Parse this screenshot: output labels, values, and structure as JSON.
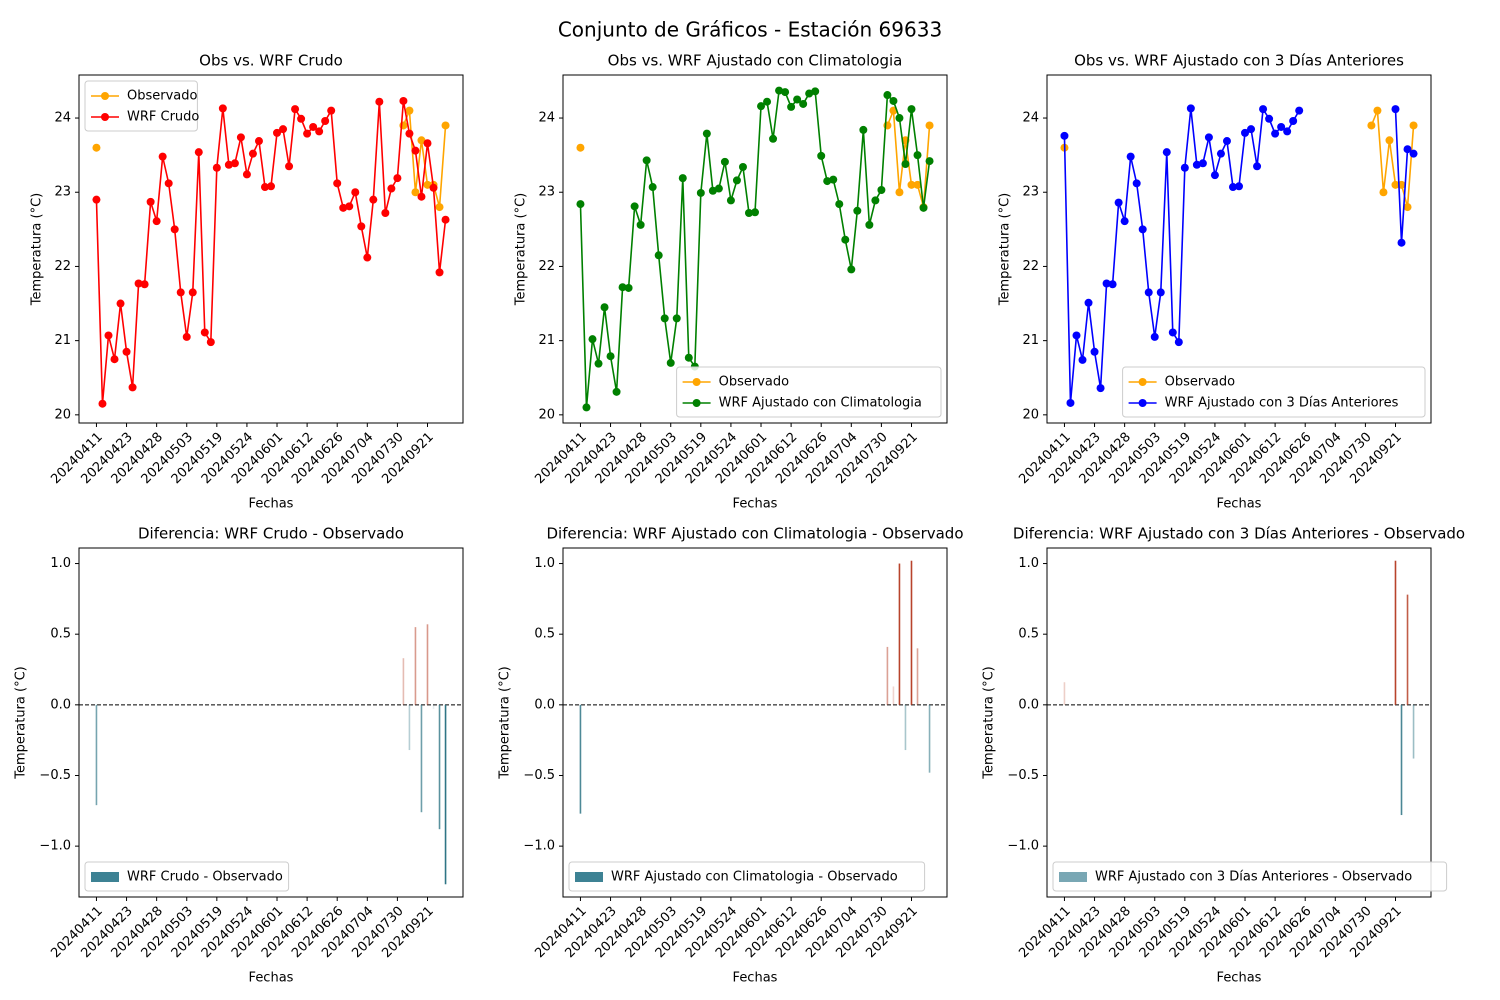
{
  "title": "Conjunto de Gráficos - Estación 69633",
  "chart_data": [
    {
      "type": "line",
      "title": "Obs vs. WRF Crudo",
      "xlabel": "Fechas",
      "ylabel": "Temperatura (°C)",
      "categories": [
        "20240411",
        null,
        null,
        null,
        null,
        "20240423",
        null,
        null,
        null,
        null,
        "20240428",
        null,
        null,
        null,
        null,
        "20240503",
        null,
        null,
        null,
        null,
        "20240519",
        null,
        null,
        null,
        null,
        "20240524",
        null,
        null,
        null,
        null,
        "20240601",
        null,
        null,
        null,
        null,
        "20240612",
        null,
        null,
        null,
        null,
        "20240626",
        null,
        null,
        null,
        null,
        "20240704",
        null,
        null,
        null,
        null,
        "20240730",
        null,
        null,
        null,
        null,
        "20240921",
        null,
        null,
        null
      ],
      "series": [
        {
          "name": "Observado",
          "color": "orange",
          "values": [
            23.6,
            null,
            null,
            null,
            null,
            null,
            null,
            null,
            null,
            null,
            null,
            null,
            null,
            null,
            null,
            null,
            null,
            null,
            null,
            null,
            null,
            null,
            null,
            null,
            null,
            null,
            null,
            null,
            null,
            null,
            null,
            null,
            null,
            null,
            null,
            null,
            null,
            null,
            null,
            null,
            null,
            null,
            null,
            null,
            null,
            null,
            null,
            null,
            null,
            null,
            null,
            23.9,
            24.1,
            23.0,
            23.7,
            23.1,
            23.1,
            22.8,
            23.9
          ]
        },
        {
          "name": "WRF Crudo",
          "color": "red",
          "values": [
            22.9,
            20.15,
            21.07,
            20.75,
            21.5,
            20.85,
            20.37,
            21.77,
            21.76,
            22.87,
            22.61,
            23.48,
            23.12,
            22.5,
            21.65,
            21.05,
            21.65,
            23.54,
            21.11,
            20.98,
            23.33,
            24.13,
            23.37,
            23.39,
            23.74,
            23.24,
            23.52,
            23.69,
            23.07,
            23.08,
            23.8,
            23.85,
            23.35,
            24.12,
            23.99,
            23.79,
            23.88,
            23.82,
            23.96,
            24.1,
            23.12,
            22.79,
            22.81,
            23.0,
            22.54,
            22.12,
            22.9,
            24.22,
            22.72,
            23.05,
            23.19,
            24.23,
            23.79,
            23.56,
            22.94,
            23.66,
            23.06,
            21.92,
            22.63
          ]
        }
      ],
      "ylim": [
        19.89,
        24.58
      ],
      "yticks": [
        20,
        21,
        22,
        23,
        24
      ],
      "legend": "upper left"
    },
    {
      "type": "line",
      "title": "Obs vs. WRF Ajustado con Climatologia",
      "xlabel": "Fechas",
      "ylabel": "Temperatura (°C)",
      "categories": [
        "20240411",
        null,
        null,
        null,
        null,
        "20240423",
        null,
        null,
        null,
        null,
        "20240428",
        null,
        null,
        null,
        null,
        "20240503",
        null,
        null,
        null,
        null,
        "20240519",
        null,
        null,
        null,
        null,
        "20240524",
        null,
        null,
        null,
        null,
        "20240601",
        null,
        null,
        null,
        null,
        "20240612",
        null,
        null,
        null,
        null,
        "20240626",
        null,
        null,
        null,
        null,
        "20240704",
        null,
        null,
        null,
        null,
        "20240730",
        null,
        null,
        null,
        null,
        "20240921",
        null,
        null,
        null
      ],
      "series": [
        {
          "name": "Observado",
          "color": "orange",
          "values": [
            23.6,
            null,
            null,
            null,
            null,
            null,
            null,
            null,
            null,
            null,
            null,
            null,
            null,
            null,
            null,
            null,
            null,
            null,
            null,
            null,
            null,
            null,
            null,
            null,
            null,
            null,
            null,
            null,
            null,
            null,
            null,
            null,
            null,
            null,
            null,
            null,
            null,
            null,
            null,
            null,
            null,
            null,
            null,
            null,
            null,
            null,
            null,
            null,
            null,
            null,
            null,
            23.9,
            24.1,
            23.0,
            23.7,
            23.1,
            23.1,
            22.8,
            23.9
          ]
        },
        {
          "name": "WRF Ajustado con Climatologia",
          "color": "green",
          "values": [
            22.84,
            20.1,
            21.02,
            20.69,
            21.45,
            20.79,
            20.31,
            21.72,
            21.71,
            22.81,
            22.56,
            23.43,
            23.07,
            22.15,
            21.3,
            20.7,
            21.3,
            23.19,
            20.77,
            20.65,
            22.99,
            23.79,
            23.02,
            23.05,
            23.41,
            22.89,
            23.16,
            23.34,
            22.72,
            22.73,
            24.16,
            24.22,
            23.72,
            24.37,
            24.35,
            24.15,
            24.25,
            24.19,
            24.33,
            24.36,
            23.49,
            23.15,
            23.17,
            22.84,
            22.36,
            21.96,
            22.75,
            23.84,
            22.56,
            22.89,
            23.03,
            24.31,
            24.23,
            24.0,
            23.38,
            24.12,
            23.5,
            22.79,
            23.42
          ]
        }
      ],
      "ylim": [
        19.89,
        24.58
      ],
      "yticks": [
        20,
        21,
        22,
        23,
        24
      ],
      "legend": "lower right"
    },
    {
      "type": "line",
      "title": "Obs vs. WRF Ajustado con 3 Días Anteriores",
      "xlabel": "Fechas",
      "ylabel": "Temperatura (°C)",
      "categories": [
        "20240411",
        null,
        null,
        null,
        null,
        "20240423",
        null,
        null,
        null,
        null,
        "20240428",
        null,
        null,
        null,
        null,
        "20240503",
        null,
        null,
        null,
        null,
        "20240519",
        null,
        null,
        null,
        null,
        "20240524",
        null,
        null,
        null,
        null,
        "20240601",
        null,
        null,
        null,
        null,
        "20240612",
        null,
        null,
        null,
        null,
        "20240626",
        null,
        null,
        null,
        null,
        "20240704",
        null,
        null,
        null,
        null,
        "20240730",
        null,
        null,
        null,
        null,
        "20240921",
        null,
        null,
        null
      ],
      "series": [
        {
          "name": "Observado",
          "color": "orange",
          "values": [
            23.6,
            null,
            null,
            null,
            null,
            null,
            null,
            null,
            null,
            null,
            null,
            null,
            null,
            null,
            null,
            null,
            null,
            null,
            null,
            null,
            null,
            null,
            null,
            null,
            null,
            null,
            null,
            null,
            null,
            null,
            null,
            null,
            null,
            null,
            null,
            null,
            null,
            null,
            null,
            null,
            null,
            null,
            null,
            null,
            null,
            null,
            null,
            null,
            null,
            null,
            null,
            23.9,
            24.1,
            23.0,
            23.7,
            23.1,
            23.1,
            22.8,
            23.9
          ]
        },
        {
          "name": "WRF Ajustado con 3 Días Anteriores",
          "color": "blue",
          "values": [
            23.76,
            20.16,
            21.07,
            20.74,
            21.51,
            20.85,
            20.36,
            21.77,
            21.76,
            22.86,
            22.61,
            23.48,
            23.12,
            22.5,
            21.65,
            21.05,
            21.65,
            23.54,
            21.11,
            20.98,
            23.33,
            24.13,
            23.37,
            23.39,
            23.74,
            23.23,
            23.52,
            23.69,
            23.07,
            23.08,
            23.8,
            23.85,
            23.35,
            24.12,
            23.99,
            23.79,
            23.88,
            23.82,
            23.96,
            24.1,
            null,
            null,
            null,
            null,
            null,
            null,
            null,
            null,
            null,
            null,
            null,
            null,
            null,
            null,
            null,
            24.12,
            22.32,
            23.58,
            23.52
          ]
        }
      ],
      "ylim": [
        19.89,
        24.58
      ],
      "yticks": [
        20,
        21,
        22,
        23,
        24
      ],
      "legend": "lower right"
    },
    {
      "type": "bar",
      "title": "Diferencia: WRF Crudo - Observado",
      "xlabel": "Fechas",
      "ylabel": "Temperatura (°C)",
      "categories": [
        "20240411",
        null,
        null,
        null,
        null,
        "20240423",
        null,
        null,
        null,
        null,
        "20240428",
        null,
        null,
        null,
        null,
        "20240503",
        null,
        null,
        null,
        null,
        "20240519",
        null,
        null,
        null,
        null,
        "20240524",
        null,
        null,
        null,
        null,
        "20240601",
        null,
        null,
        null,
        null,
        "20240612",
        null,
        null,
        null,
        null,
        "20240626",
        null,
        null,
        null,
        null,
        "20240704",
        null,
        null,
        null,
        null,
        "20240730",
        null,
        null,
        null,
        null,
        "20240921",
        null,
        null,
        null
      ],
      "series": [
        {
          "name": "WRF Crudo - Observado",
          "color": "#3d8294",
          "values": [
            -0.71,
            null,
            null,
            null,
            null,
            null,
            null,
            null,
            null,
            null,
            null,
            null,
            null,
            null,
            null,
            null,
            null,
            null,
            null,
            null,
            null,
            null,
            null,
            null,
            null,
            null,
            null,
            null,
            null,
            null,
            null,
            null,
            null,
            null,
            null,
            null,
            null,
            null,
            null,
            null,
            null,
            null,
            null,
            null,
            null,
            null,
            null,
            null,
            null,
            null,
            null,
            0.33,
            -0.32,
            0.55,
            -0.76,
            0.57,
            -0.03,
            -0.88,
            -1.27
          ]
        }
      ],
      "positive_color": "#b8442c",
      "negative_color": "#2f7585",
      "ylim": [
        -1.36,
        1.11
      ],
      "yticks": [
        {
          "value": -1,
          "label": "−1.0"
        },
        {
          "value": -0.5,
          "label": "−0.5"
        },
        {
          "value": 0,
          "label": "0.0"
        },
        {
          "value": 0.5,
          "label": "0.5"
        },
        {
          "value": 1,
          "label": "1.0"
        }
      ],
      "legend": "lower left"
    },
    {
      "type": "bar",
      "title": "Diferencia: WRF Ajustado con Climatologia - Observado",
      "xlabel": "Fechas",
      "ylabel": "Temperatura (°C)",
      "categories": [
        "20240411",
        null,
        null,
        null,
        null,
        "20240423",
        null,
        null,
        null,
        null,
        "20240428",
        null,
        null,
        null,
        null,
        "20240503",
        null,
        null,
        null,
        null,
        "20240519",
        null,
        null,
        null,
        null,
        "20240524",
        null,
        null,
        null,
        null,
        "20240601",
        null,
        null,
        null,
        null,
        "20240612",
        null,
        null,
        null,
        null,
        "20240626",
        null,
        null,
        null,
        null,
        "20240704",
        null,
        null,
        null,
        null,
        "20240730",
        null,
        null,
        null,
        null,
        "20240921",
        null,
        null,
        null
      ],
      "series": [
        {
          "name": "WRF Ajustado con Climatologia - Observado",
          "color": "#3d8294",
          "values": [
            -0.77,
            null,
            null,
            null,
            null,
            null,
            null,
            null,
            null,
            null,
            null,
            null,
            null,
            null,
            null,
            null,
            null,
            null,
            null,
            null,
            null,
            null,
            null,
            null,
            null,
            null,
            null,
            null,
            null,
            null,
            null,
            null,
            null,
            null,
            null,
            null,
            null,
            null,
            null,
            null,
            null,
            null,
            null,
            null,
            null,
            null,
            null,
            null,
            null,
            null,
            null,
            0.41,
            0.13,
            1.0,
            -0.32,
            1.02,
            0.4,
            -0.01,
            -0.48
          ]
        }
      ],
      "positive_color": "#b8442c",
      "negative_color": "#2f7585",
      "ylim": [
        -1.36,
        1.11
      ],
      "yticks": [
        {
          "value": -1,
          "label": "−1.0"
        },
        {
          "value": -0.5,
          "label": "−0.5"
        },
        {
          "value": 0,
          "label": "0.0"
        },
        {
          "value": 0.5,
          "label": "0.5"
        },
        {
          "value": 1,
          "label": "1.0"
        }
      ],
      "legend": "lower left"
    },
    {
      "type": "bar",
      "title": "Diferencia: WRF Ajustado con 3 Días Anteriores - Observado",
      "xlabel": "Fechas",
      "ylabel": "Temperatura (°C)",
      "categories": [
        "20240411",
        null,
        null,
        null,
        null,
        "20240423",
        null,
        null,
        null,
        null,
        "20240428",
        null,
        null,
        null,
        null,
        "20240503",
        null,
        null,
        null,
        null,
        "20240519",
        null,
        null,
        null,
        null,
        "20240524",
        null,
        null,
        null,
        null,
        "20240601",
        null,
        null,
        null,
        null,
        "20240612",
        null,
        null,
        null,
        null,
        "20240626",
        null,
        null,
        null,
        null,
        "20240704",
        null,
        null,
        null,
        null,
        "20240730",
        null,
        null,
        null,
        null,
        "20240921",
        null,
        null,
        null
      ],
      "series": [
        {
          "name": "WRF Ajustado con 3 Días Anteriores - Observado",
          "color": "#79a7b4",
          "values": [
            0.16,
            null,
            null,
            null,
            null,
            null,
            null,
            null,
            null,
            null,
            null,
            null,
            null,
            null,
            null,
            null,
            null,
            null,
            null,
            null,
            null,
            null,
            null,
            null,
            null,
            null,
            null,
            null,
            null,
            null,
            null,
            null,
            null,
            null,
            null,
            null,
            null,
            null,
            null,
            null,
            null,
            null,
            null,
            null,
            null,
            null,
            null,
            null,
            null,
            null,
            null,
            null,
            null,
            null,
            null,
            1.02,
            -0.78,
            0.78,
            -0.38
          ]
        }
      ],
      "positive_color": "#b8442c",
      "negative_color": "#2f7585",
      "ylim": [
        -1.36,
        1.11
      ],
      "yticks": [
        {
          "value": -1,
          "label": "−1.0"
        },
        {
          "value": -0.5,
          "label": "−0.5"
        },
        {
          "value": 0,
          "label": "0.0"
        },
        {
          "value": 0.5,
          "label": "0.5"
        },
        {
          "value": 1,
          "label": "1.0"
        }
      ],
      "legend": "lower left"
    }
  ]
}
